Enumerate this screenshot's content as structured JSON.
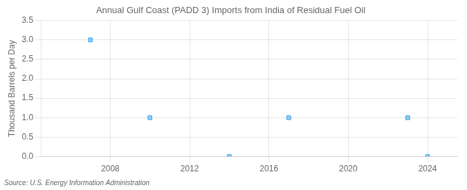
{
  "chart_data": {
    "type": "scatter",
    "title": "Annual Gulf Coast (PADD 3) Imports from India of Residual Fuel Oil",
    "ylabel": "Thousand Barrels per Day",
    "annotations": [
      "Source: U.S. Energy Information Administration"
    ],
    "x": [
      2007,
      2010,
      2014,
      2017,
      2023,
      2024
    ],
    "values": [
      3.0,
      1.0,
      0.0,
      1.0,
      1.0,
      0.0
    ],
    "marker": "square",
    "xlim": [
      2004.5,
      2025.5
    ],
    "ylim": [
      0,
      3.5
    ],
    "xticks": [
      2008,
      2012,
      2016,
      2020,
      2024
    ],
    "yticks": [
      {
        "value": 0,
        "label": "0.0"
      },
      0.5,
      {
        "value": 1,
        "label": "1.0"
      },
      1.5,
      {
        "value": 2,
        "label": "2.0"
      },
      2.5,
      {
        "value": 3,
        "label": "3.0"
      },
      3.5
    ],
    "grid": true
  }
}
